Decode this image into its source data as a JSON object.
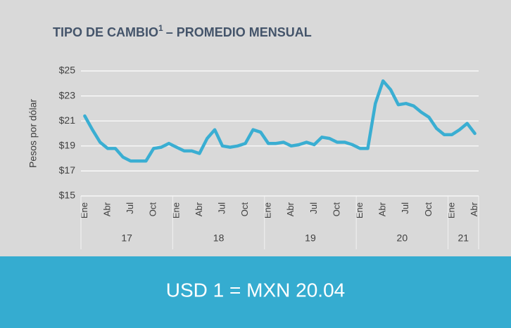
{
  "chart_data": {
    "type": "line",
    "title": "TIPO DE CAMBIO",
    "title_superscript": "1",
    "title_rest": "– PROMEDIO MENSUAL",
    "y_label": "Pesos por dólar",
    "categories": [
      "Ene",
      null,
      null,
      "Abr",
      null,
      null,
      "Jul",
      null,
      null,
      "Oct",
      null,
      null,
      "Ene",
      null,
      null,
      "Abr",
      null,
      null,
      "Jul",
      null,
      null,
      "Oct",
      null,
      null,
      "Ene",
      null,
      null,
      "Abr",
      null,
      null,
      "Jul",
      null,
      null,
      "Oct",
      null,
      null,
      "Ene",
      null,
      null,
      "Abr",
      null,
      null,
      "Jul",
      null,
      null,
      "Oct",
      null,
      null,
      "Ene",
      null,
      null,
      "Abr"
    ],
    "year_groups": [
      {
        "label": "17",
        "months": 12
      },
      {
        "label": "18",
        "months": 12
      },
      {
        "label": "19",
        "months": 12
      },
      {
        "label": "20",
        "months": 12
      },
      {
        "label": "21",
        "months": 4
      }
    ],
    "series": [
      {
        "name": "Tipo de cambio",
        "color": "#3aaed2",
        "values": [
          21.4,
          20.3,
          19.3,
          18.8,
          18.8,
          18.1,
          17.8,
          17.8,
          17.8,
          18.8,
          18.9,
          19.2,
          18.9,
          18.6,
          18.6,
          18.4,
          19.6,
          20.3,
          19.0,
          18.9,
          19.0,
          19.2,
          20.3,
          20.1,
          19.2,
          19.2,
          19.3,
          19.0,
          19.1,
          19.3,
          19.1,
          19.7,
          19.6,
          19.3,
          19.3,
          19.1,
          18.8,
          18.8,
          22.4,
          24.2,
          23.5,
          22.3,
          22.4,
          22.2,
          21.7,
          21.3,
          20.4,
          19.9,
          19.9,
          20.3,
          20.8,
          20.0
        ]
      }
    ],
    "ylim": [
      15,
      25
    ],
    "yticks": [
      {
        "value": 15,
        "label": "$15"
      },
      {
        "value": 17,
        "label": "$17"
      },
      {
        "value": 19,
        "label": "$19"
      },
      {
        "value": 21,
        "label": "$21"
      },
      {
        "value": 23,
        "label": "$23"
      },
      {
        "value": 25,
        "label": "$25"
      }
    ],
    "grid": true,
    "footer": "USD 1 = MXN 20.04"
  }
}
